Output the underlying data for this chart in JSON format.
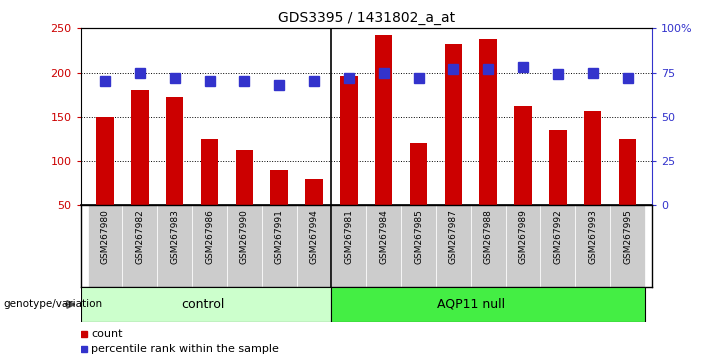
{
  "title": "GDS3395 / 1431802_a_at",
  "samples": [
    "GSM267980",
    "GSM267982",
    "GSM267983",
    "GSM267986",
    "GSM267990",
    "GSM267991",
    "GSM267994",
    "GSM267981",
    "GSM267984",
    "GSM267985",
    "GSM267987",
    "GSM267988",
    "GSM267989",
    "GSM267992",
    "GSM267993",
    "GSM267995"
  ],
  "bar_values": [
    150,
    180,
    172,
    125,
    112,
    90,
    80,
    196,
    242,
    120,
    232,
    238,
    162,
    135,
    157,
    125
  ],
  "percentile_values": [
    70,
    75,
    72,
    70,
    70,
    68,
    70,
    72,
    75,
    72,
    77,
    77,
    78,
    74,
    75,
    72
  ],
  "bar_color": "#cc0000",
  "percentile_color": "#3333cc",
  "ylim_left": [
    50,
    250
  ],
  "ylim_right": [
    0,
    100
  ],
  "yticks_left": [
    50,
    100,
    150,
    200,
    250
  ],
  "yticks_right": [
    0,
    25,
    50,
    75,
    100
  ],
  "yticklabels_right": [
    "0",
    "25",
    "50",
    "75",
    "100%"
  ],
  "grid_lines": [
    100,
    150,
    200
  ],
  "n_control": 7,
  "n_aqp11": 9,
  "control_label": "control",
  "aqp11_label": "AQP11 null",
  "group_label": "genotype/variation",
  "legend_count": "count",
  "legend_percentile": "percentile rank within the sample",
  "control_color": "#ccffcc",
  "aqp11_color": "#44ee44",
  "tick_bg_color": "#cccccc",
  "bar_width": 0.5,
  "percentile_marker_size": 7,
  "fig_width": 7.01,
  "fig_height": 3.54,
  "dpi": 100
}
